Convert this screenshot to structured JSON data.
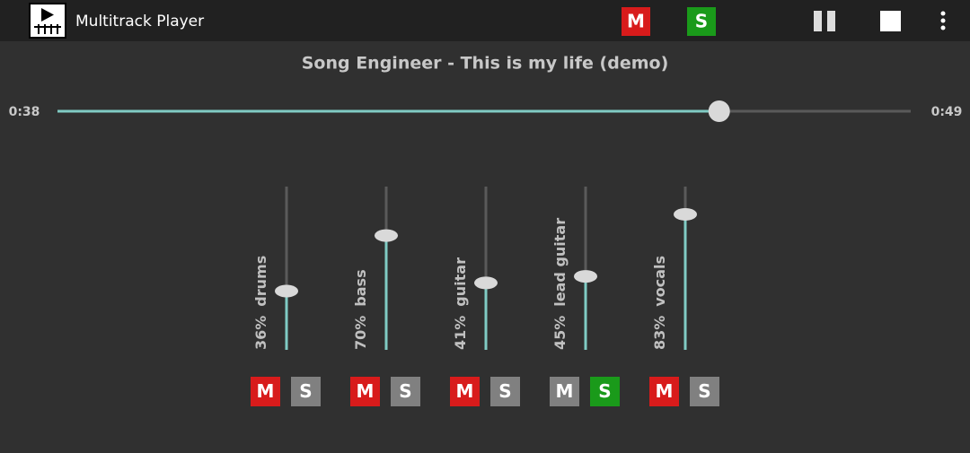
{
  "app_bar": {
    "title": "Multitrack Player",
    "mute_label": "M",
    "solo_label": "S"
  },
  "song": {
    "title": "Song Engineer - This is my life (demo)",
    "position": {
      "value": 38,
      "label": "0:38"
    },
    "duration": {
      "value": 49,
      "label": "0:49"
    }
  },
  "tracks": [
    {
      "name": "drums",
      "volume": 36,
      "volume_label": "36%",
      "mute_label": "M",
      "solo_label": "S",
      "muted": true,
      "soloed": false
    },
    {
      "name": "bass",
      "volume": 70,
      "volume_label": "70%",
      "mute_label": "M",
      "solo_label": "S",
      "muted": true,
      "soloed": false
    },
    {
      "name": "guitar",
      "volume": 41,
      "volume_label": "41%",
      "mute_label": "M",
      "solo_label": "S",
      "muted": true,
      "soloed": false
    },
    {
      "name": "lead guitar",
      "volume": 45,
      "volume_label": "45%",
      "mute_label": "M",
      "solo_label": "S",
      "muted": false,
      "soloed": true
    },
    {
      "name": "vocals",
      "volume": 83,
      "volume_label": "83%",
      "mute_label": "M",
      "solo_label": "S",
      "muted": true,
      "soloed": false
    }
  ]
}
